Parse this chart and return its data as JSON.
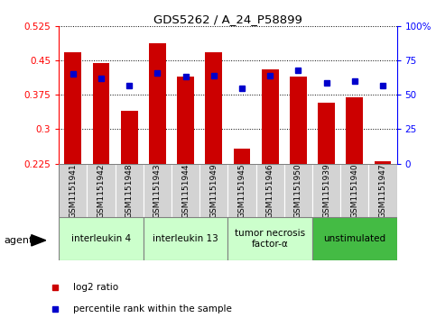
{
  "title": "GDS5262 / A_24_P58899",
  "samples": [
    "GSM1151941",
    "GSM1151942",
    "GSM1151948",
    "GSM1151943",
    "GSM1151944",
    "GSM1151949",
    "GSM1151945",
    "GSM1151946",
    "GSM1151950",
    "GSM1151939",
    "GSM1151940",
    "GSM1151947"
  ],
  "log2_ratio": [
    0.468,
    0.445,
    0.34,
    0.487,
    0.415,
    0.468,
    0.258,
    0.43,
    0.415,
    0.358,
    0.37,
    0.23
  ],
  "percentile_rank": [
    65,
    62,
    57,
    66,
    63,
    64,
    55,
    64,
    68,
    59,
    60,
    57
  ],
  "ylim_left": [
    0.225,
    0.525
  ],
  "ylim_right": [
    0,
    100
  ],
  "yticks_left": [
    0.225,
    0.3,
    0.375,
    0.45,
    0.525
  ],
  "yticks_right": [
    0,
    25,
    50,
    75,
    100
  ],
  "bar_color": "#CC0000",
  "dot_color": "#0000CC",
  "baseline": 0.225,
  "groups": [
    {
      "label": "interleukin 4",
      "start": 0,
      "end": 3,
      "color": "#ccffcc"
    },
    {
      "label": "interleukin 13",
      "start": 3,
      "end": 6,
      "color": "#ccffcc"
    },
    {
      "label": "tumor necrosis\nfactor-α",
      "start": 6,
      "end": 9,
      "color": "#ccffcc"
    },
    {
      "label": "unstimulated",
      "start": 9,
      "end": 12,
      "color": "#44bb44"
    }
  ],
  "agent_label": "agent",
  "bg_color": "#cccccc"
}
